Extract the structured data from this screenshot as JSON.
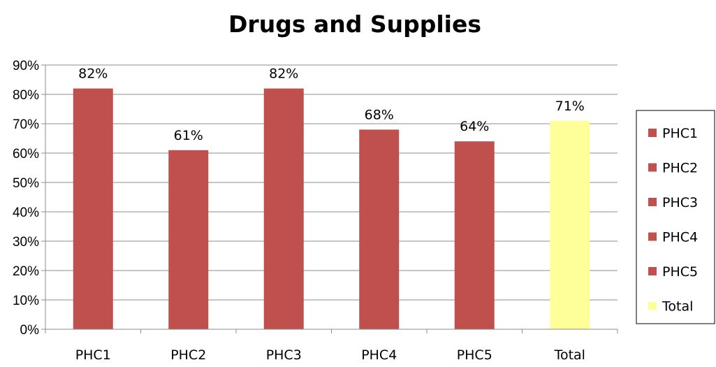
{
  "chart_data": {
    "type": "bar",
    "title": "Drugs and Supplies",
    "categories": [
      "PHC1",
      "PHC2",
      "PHC3",
      "PHC4",
      "PHC5",
      "Total"
    ],
    "values": [
      82,
      61,
      82,
      68,
      64,
      71
    ],
    "data_labels": [
      "82%",
      "61%",
      "82%",
      "68%",
      "64%",
      "71%"
    ],
    "ylim": [
      0,
      90
    ],
    "yticks": [
      0,
      10,
      20,
      30,
      40,
      50,
      60,
      70,
      80,
      90
    ],
    "ytick_labels": [
      "0%",
      "10%",
      "20%",
      "30%",
      "40%",
      "50%",
      "60%",
      "70%",
      "80%",
      "90%"
    ],
    "colors": [
      "#c0504d",
      "#c0504d",
      "#c0504d",
      "#c0504d",
      "#c0504d",
      "#ffff99"
    ],
    "legend": {
      "position": "right",
      "entries": [
        "PHC1",
        "PHC2",
        "PHC3",
        "PHC4",
        "PHC5",
        "Total"
      ]
    },
    "grid": true
  }
}
